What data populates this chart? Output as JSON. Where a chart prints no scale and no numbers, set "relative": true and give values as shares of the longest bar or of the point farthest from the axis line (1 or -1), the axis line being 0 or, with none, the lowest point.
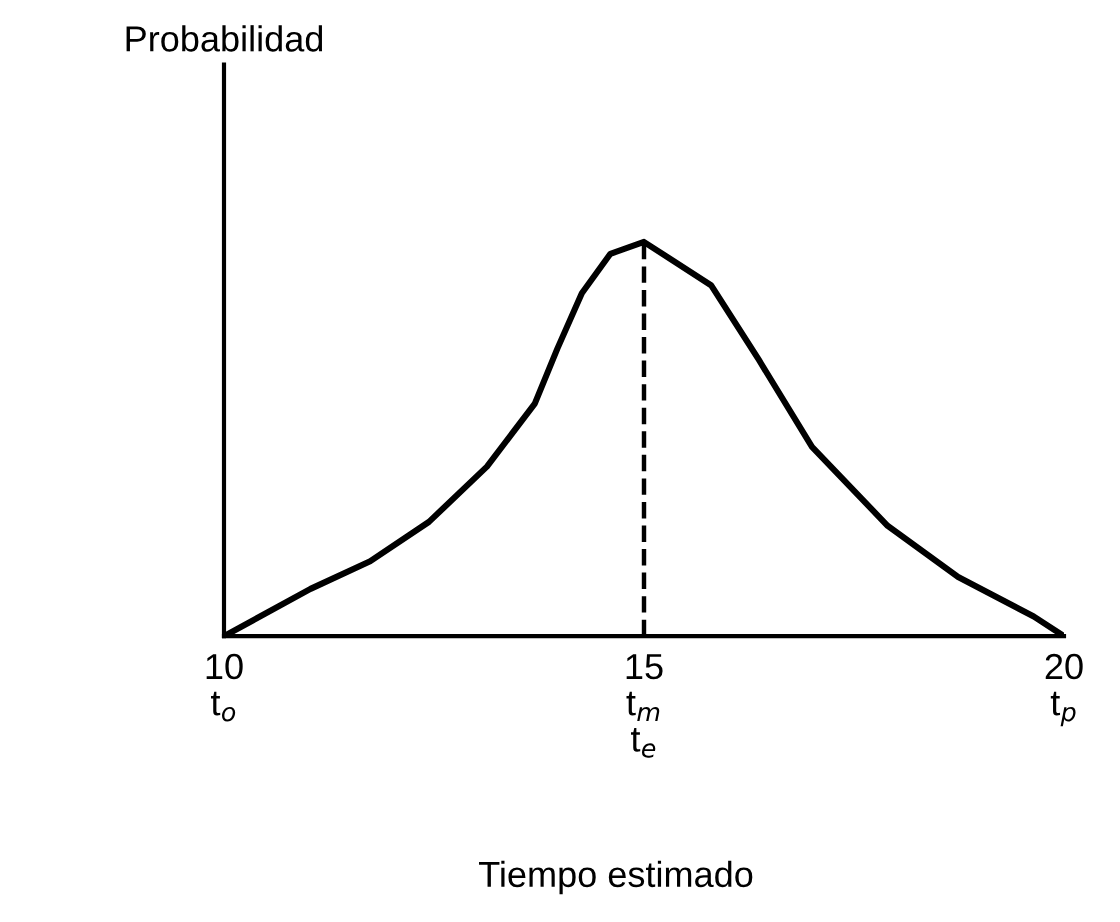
{
  "chart_data": {
    "type": "line",
    "relative": true,
    "annotations": [
      "Probabilidad"
    ],
    "xlabel": "Tiempo estimado",
    "x": [
      10,
      11.03,
      11.74,
      12.44,
      13.13,
      13.7,
      13.97,
      14.26,
      14.6,
      15,
      15.8,
      16.37,
      17.0,
      17.9,
      18.74,
      19.64,
      20
    ],
    "series": [
      {
        "color": "#000000",
        "values": [
          0,
          0.12,
          0.19,
          0.29,
          0.43,
          0.59,
          0.73,
          0.87,
          0.97,
          1,
          0.89,
          0.7,
          0.48,
          0.28,
          0.15,
          0.05,
          0
        ]
      }
    ],
    "xlim": [
      10,
      20
    ],
    "xticks": [
      {
        "value": 10,
        "label": "10\nt$_{o}$"
      },
      {
        "value": 15,
        "label": "15\nt$_{m}$\nt$_{e}$"
      },
      {
        "value": 20,
        "label": "20\nt$_{p}$"
      }
    ],
    "ref_lines": [
      {
        "axis": "x",
        "value": 15,
        "color": "#000000",
        "line_style": "dashed"
      }
    ],
    "grid": false,
    "marker": "none",
    "line_style": "solid"
  }
}
